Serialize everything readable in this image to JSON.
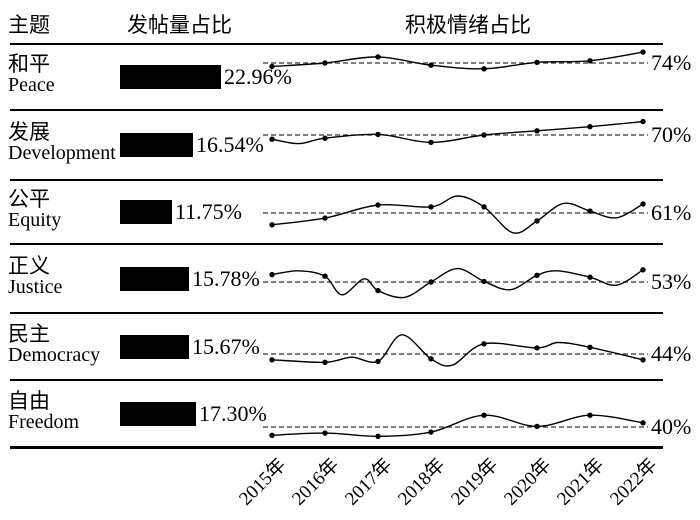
{
  "header": {
    "topic": "主题",
    "volume": "发帖量占比",
    "sentiment": "积极情绪占比"
  },
  "rows": [
    {
      "zh": "和平",
      "en": "Peace",
      "volume_label": "22.96%",
      "sentiment_label": "74%"
    },
    {
      "zh": "发展",
      "en": "Development",
      "volume_label": "16.54%",
      "sentiment_label": "70%"
    },
    {
      "zh": "公平",
      "en": "Equity",
      "volume_label": "11.75%",
      "sentiment_label": "61%"
    },
    {
      "zh": "正义",
      "en": "Justice",
      "volume_label": "15.78%",
      "sentiment_label": "53%"
    },
    {
      "zh": "民主",
      "en": "Democracy",
      "volume_label": "15.67%",
      "sentiment_label": "44%"
    },
    {
      "zh": "自由",
      "en": "Freedom",
      "volume_label": "17.30%",
      "sentiment_label": "40%"
    }
  ],
  "colors": {
    "ink": "#000000",
    "background": "#ffffff",
    "dashed": "#333333"
  },
  "chart_data": [
    {
      "type": "bar",
      "title": "发帖量占比",
      "orientation": "horizontal",
      "categories": [
        "和平 Peace",
        "发展 Development",
        "公平 Equity",
        "正义 Justice",
        "民主 Democracy",
        "自由 Freedom"
      ],
      "values": [
        22.96,
        16.54,
        11.75,
        15.78,
        15.67,
        17.3
      ],
      "unit": "%",
      "bar_color": "#000000"
    },
    {
      "type": "line",
      "title": "积极情绪占比",
      "x_labels": [
        "2015年",
        "2016年",
        "2017年",
        "2018年",
        "2019年",
        "2020年",
        "2021年",
        "2022年"
      ],
      "unit": "%",
      "legend_position": "none",
      "grid": false,
      "series": [
        {
          "name": "和平 Peace",
          "dashed_value": 74,
          "label": "74%",
          "values": [
            72.9,
            74.0,
            75.9,
            73.3,
            72.2,
            74.2,
            74.7,
            77.4
          ],
          "curve_midpoints": []
        },
        {
          "name": "发展 Development",
          "dashed_value": 70,
          "label": "70%",
          "values": [
            68.7,
            69.0,
            70.2,
            67.7,
            70.0,
            71.3,
            72.6,
            74.2
          ],
          "curve_midpoints": [
            [
              0.5,
              67.3
            ]
          ]
        },
        {
          "name": "公平 Equity",
          "dashed_value": 61,
          "label": "61%",
          "values": [
            57.3,
            59.4,
            63.5,
            62.9,
            62.9,
            58.5,
            61.6,
            63.8
          ],
          "curve_midpoints": [
            [
              3.5,
              66.3
            ],
            [
              4.55,
              54.8
            ],
            [
              5.5,
              64.0
            ],
            [
              6.5,
              59.5
            ]
          ]
        },
        {
          "name": "正义 Justice",
          "dashed_value": 53,
          "label": "53%",
          "values": [
            55.3,
            54.8,
            50.3,
            53.0,
            53.2,
            55.1,
            54.5,
            56.8
          ],
          "curve_midpoints": [
            [
              0.5,
              56.5
            ],
            [
              1.32,
              49.0
            ],
            [
              1.74,
              54.0
            ],
            [
              2.5,
              48.2
            ],
            [
              3.5,
              57.2
            ],
            [
              4.5,
              50.6
            ],
            [
              5.38,
              56.5
            ],
            [
              6.5,
              52.0
            ]
          ]
        },
        {
          "name": "民主 Democracy",
          "dashed_value": 44,
          "label": "44%",
          "values": [
            42.2,
            41.4,
            41.7,
            42.5,
            47.2,
            45.9,
            46.1,
            42.2
          ],
          "curve_midpoints": [
            [
              1.5,
              43.0
            ],
            [
              2.45,
              50.0
            ],
            [
              3.4,
              40.5
            ],
            [
              5.4,
              47.6
            ]
          ]
        },
        {
          "name": "自由 Freedom",
          "dashed_value": 40,
          "label": "40%",
          "values": [
            37.4,
            38.1,
            37.1,
            38.4,
            43.7,
            40.2,
            43.7,
            41.3
          ],
          "curve_midpoints": []
        }
      ]
    }
  ]
}
